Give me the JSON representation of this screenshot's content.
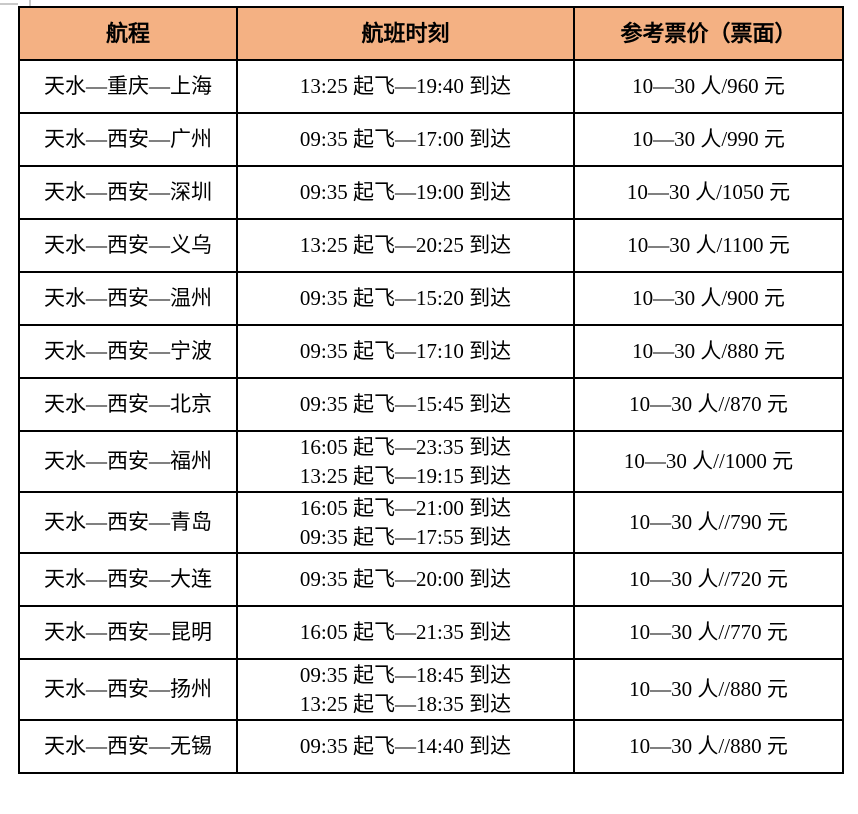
{
  "table": {
    "header_bg": "#F4B183",
    "border_color": "#000000",
    "columns": [
      {
        "label": "航程"
      },
      {
        "label": "航班时刻"
      },
      {
        "label": "参考票价（票面）"
      }
    ],
    "rows": [
      {
        "route": "天水—重庆—上海",
        "times": [
          "13:25 起飞—19:40 到达"
        ],
        "price": "10—30 人/960 元"
      },
      {
        "route": "天水—西安—广州",
        "times": [
          "09:35 起飞—17:00 到达"
        ],
        "price": "10—30 人/990 元"
      },
      {
        "route": "天水—西安—深圳",
        "times": [
          "09:35 起飞—19:00 到达"
        ],
        "price": "10—30 人/1050 元"
      },
      {
        "route": "天水—西安—义乌",
        "times": [
          "13:25 起飞—20:25 到达"
        ],
        "price": "10—30 人/1100 元"
      },
      {
        "route": "天水—西安—温州",
        "times": [
          "09:35 起飞—15:20 到达"
        ],
        "price": "10—30 人/900 元"
      },
      {
        "route": "天水—西安—宁波",
        "times": [
          "09:35 起飞—17:10 到达"
        ],
        "price": "10—30 人/880 元"
      },
      {
        "route": "天水—西安—北京",
        "times": [
          "09:35 起飞—15:45 到达"
        ],
        "price": "10—30 人//870 元"
      },
      {
        "route": "天水—西安—福州",
        "times": [
          "16:05 起飞—23:35 到达",
          "13:25 起飞—19:15 到达"
        ],
        "price": "10—30 人//1000 元"
      },
      {
        "route": "天水—西安—青岛",
        "times": [
          "16:05 起飞—21:00 到达",
          "09:35 起飞—17:55 到达"
        ],
        "price": "10—30 人//790 元"
      },
      {
        "route": "天水—西安—大连",
        "times": [
          "09:35 起飞—20:00 到达"
        ],
        "price": "10—30 人//720 元"
      },
      {
        "route": "天水—西安—昆明",
        "times": [
          "16:05 起飞—21:35 到达"
        ],
        "price": "10—30 人//770 元"
      },
      {
        "route": "天水—西安—扬州",
        "times": [
          "09:35 起飞—18:45 到达",
          "13:25 起飞—18:35 到达"
        ],
        "price": "10—30 人//880 元"
      },
      {
        "route": "天水—西安—无锡",
        "times": [
          "09:35 起飞—14:40 到达"
        ],
        "price": "10—30 人//880 元"
      }
    ]
  }
}
